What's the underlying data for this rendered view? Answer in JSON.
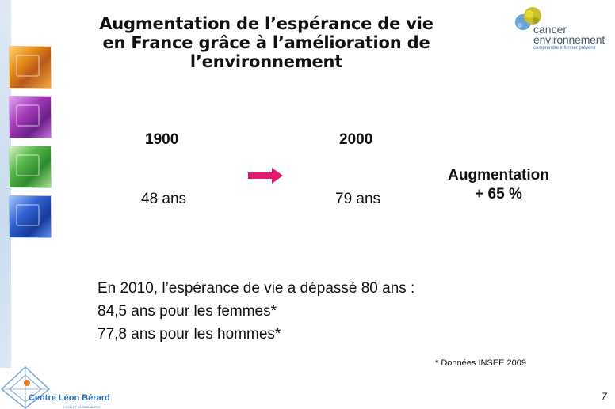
{
  "slide": {
    "title_lines": [
      "Augmentation de l’espérance de vie",
      "en France grâce à l’amélioration de",
      "l’environnement"
    ],
    "page_number": "7"
  },
  "logos": {
    "top_right": {
      "word1": "cancer",
      "word2": "environnement",
      "tagline": "comprendre informer prévenir"
    },
    "bottom_left": {
      "name": "Centre Léon Bérard",
      "sub": "LYON ET RHÔNE-ALPES"
    }
  },
  "comparison": {
    "years": [
      "1900",
      "2000"
    ],
    "values": [
      "48 ans",
      "79 ans"
    ],
    "increase_lines": [
      "Augmentation",
      "+ 65 %"
    ]
  },
  "stats": [
    "En 2010, l’espérance de vie a dépassé 80 ans :",
    "84,5 ans pour les femmes*",
    "77,8 ans pour les hommes*"
  ],
  "source": "* Données INSEE 2009",
  "colors": {
    "arrow": "#e5176e",
    "accent_blue": "#2f6fb3",
    "side_band": "#c9dbee"
  },
  "icons": {
    "arrow": "right-arrow-icon"
  }
}
